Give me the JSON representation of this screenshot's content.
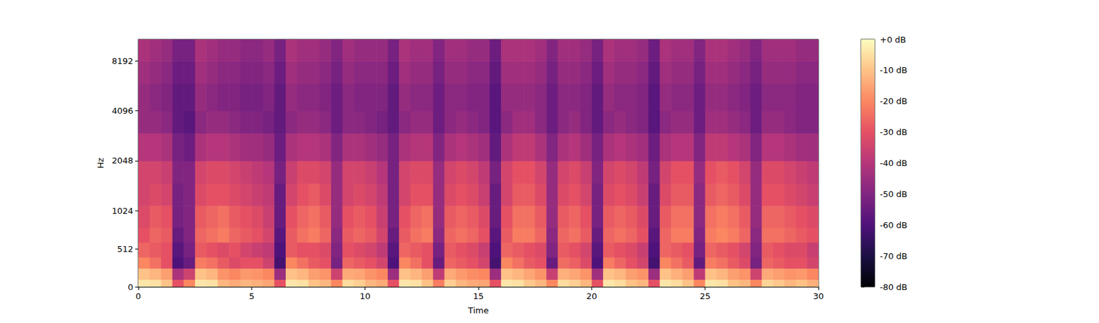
{
  "chart_data": {
    "type": "heatmap",
    "xlabel": "Time",
    "ylabel": "Hz",
    "xlim": [
      0,
      30
    ],
    "xticks": [
      0,
      5,
      10,
      15,
      20,
      25,
      30
    ],
    "ylim": [
      0,
      11025
    ],
    "yticks": [
      0,
      512,
      1024,
      2048,
      4096,
      8192
    ],
    "grid": false,
    "x_edges": [
      0,
      0.5,
      1,
      1.5,
      2,
      2.5,
      3,
      3.5,
      4,
      4.5,
      5,
      5.5,
      6,
      6.5,
      7,
      7.5,
      8,
      8.5,
      9,
      9.5,
      10,
      10.5,
      11,
      11.5,
      12,
      12.5,
      13,
      13.5,
      14,
      14.5,
      15,
      15.5,
      16,
      16.5,
      17,
      17.5,
      18,
      18.5,
      19,
      19.5,
      20,
      20.5,
      21,
      21.5,
      22,
      22.5,
      23,
      23.5,
      24,
      24.5,
      25,
      25.5,
      26,
      26.5,
      27,
      27.5,
      28,
      28.5,
      29,
      29.5,
      30
    ],
    "y_edges": [
      0,
      100,
      250,
      400,
      600,
      800,
      1100,
      1500,
      2048,
      3000,
      4096,
      6000,
      8192,
      11025
    ],
    "cells": [
      [
        -4,
        -5,
        -10,
        -30,
        -20,
        -4,
        -5,
        -12,
        -14,
        -12,
        -13,
        -15,
        -30,
        -4,
        -5,
        -10,
        -12,
        -20,
        -6,
        -8,
        -12,
        -14,
        -30,
        -4,
        -5,
        -10,
        -22,
        -8,
        -12,
        -14,
        -15,
        -30,
        -4,
        -5,
        -9,
        -12,
        -20,
        -6,
        -8,
        -12,
        -30,
        -4,
        -6,
        -10,
        -12,
        -30,
        -4,
        -6,
        -10,
        -20,
        -4,
        -5,
        -10,
        -12,
        -20,
        -7,
        -9,
        -12,
        -10,
        -13
      ],
      [
        -10,
        -12,
        -16,
        -42,
        -35,
        -10,
        -12,
        -18,
        -20,
        -17,
        -18,
        -20,
        -45,
        -10,
        -12,
        -16,
        -18,
        -35,
        -14,
        -15,
        -18,
        -20,
        -45,
        -10,
        -12,
        -16,
        -38,
        -14,
        -17,
        -19,
        -20,
        -45,
        -10,
        -12,
        -15,
        -18,
        -36,
        -13,
        -15,
        -18,
        -44,
        -10,
        -12,
        -16,
        -18,
        -45,
        -10,
        -13,
        -16,
        -38,
        -10,
        -12,
        -16,
        -18,
        -35,
        -14,
        -16,
        -18,
        -17,
        -20
      ],
      [
        -20,
        -24,
        -30,
        -60,
        -55,
        -22,
        -24,
        -28,
        -32,
        -30,
        -30,
        -35,
        -62,
        -20,
        -24,
        -28,
        -30,
        -52,
        -26,
        -28,
        -30,
        -34,
        -60,
        -20,
        -24,
        -30,
        -55,
        -26,
        -28,
        -30,
        -34,
        -62,
        -20,
        -24,
        -28,
        -30,
        -55,
        -25,
        -27,
        -32,
        -60,
        -22,
        -26,
        -30,
        -34,
        -62,
        -20,
        -24,
        -28,
        -56,
        -22,
        -24,
        -28,
        -32,
        -52,
        -26,
        -28,
        -30,
        -30,
        -34
      ],
      [
        -26,
        -28,
        -30,
        -58,
        -52,
        -28,
        -30,
        -32,
        -30,
        -34,
        -36,
        -38,
        -60,
        -28,
        -30,
        -30,
        -32,
        -50,
        -30,
        -32,
        -34,
        -38,
        -58,
        -26,
        -28,
        -30,
        -52,
        -28,
        -30,
        -32,
        -36,
        -60,
        -26,
        -28,
        -30,
        -32,
        -50,
        -28,
        -30,
        -34,
        -58,
        -28,
        -30,
        -32,
        -36,
        -60,
        -26,
        -28,
        -30,
        -52,
        -26,
        -28,
        -30,
        -34,
        -50,
        -28,
        -30,
        -32,
        -32,
        -36
      ],
      [
        -30,
        -26,
        -28,
        -55,
        -50,
        -26,
        -24,
        -22,
        -26,
        -28,
        -30,
        -34,
        -58,
        -28,
        -24,
        -22,
        -26,
        -48,
        -28,
        -26,
        -28,
        -34,
        -55,
        -28,
        -24,
        -22,
        -48,
        -26,
        -24,
        -26,
        -30,
        -58,
        -28,
        -22,
        -22,
        -26,
        -48,
        -26,
        -24,
        -28,
        -55,
        -26,
        -24,
        -26,
        -30,
        -58,
        -26,
        -22,
        -22,
        -50,
        -22,
        -20,
        -22,
        -26,
        -48,
        -24,
        -24,
        -26,
        -28,
        -30
      ],
      [
        -32,
        -28,
        -30,
        -52,
        -50,
        -28,
        -26,
        -24,
        -28,
        -30,
        -32,
        -36,
        -55,
        -30,
        -26,
        -24,
        -28,
        -46,
        -30,
        -28,
        -30,
        -36,
        -52,
        -30,
        -26,
        -24,
        -46,
        -28,
        -26,
        -28,
        -32,
        -55,
        -30,
        -24,
        -24,
        -28,
        -46,
        -28,
        -26,
        -30,
        -52,
        -28,
        -26,
        -28,
        -32,
        -55,
        -28,
        -24,
        -24,
        -48,
        -24,
        -22,
        -24,
        -28,
        -46,
        -26,
        -26,
        -28,
        -30,
        -32
      ],
      [
        -34,
        -32,
        -34,
        -52,
        -50,
        -32,
        -30,
        -30,
        -32,
        -34,
        -36,
        -38,
        -55,
        -34,
        -30,
        -28,
        -32,
        -46,
        -34,
        -32,
        -34,
        -38,
        -52,
        -34,
        -30,
        -30,
        -46,
        -32,
        -30,
        -32,
        -36,
        -55,
        -34,
        -28,
        -28,
        -32,
        -46,
        -32,
        -30,
        -34,
        -52,
        -32,
        -30,
        -32,
        -36,
        -55,
        -32,
        -28,
        -28,
        -48,
        -28,
        -26,
        -28,
        -32,
        -46,
        -30,
        -30,
        -32,
        -34,
        -36
      ],
      [
        -34,
        -34,
        -36,
        -50,
        -50,
        -34,
        -32,
        -32,
        -34,
        -36,
        -38,
        -40,
        -52,
        -36,
        -32,
        -32,
        -34,
        -46,
        -34,
        -34,
        -36,
        -40,
        -52,
        -34,
        -32,
        -32,
        -46,
        -34,
        -32,
        -34,
        -38,
        -52,
        -34,
        -30,
        -30,
        -34,
        -46,
        -34,
        -32,
        -36,
        -50,
        -34,
        -32,
        -34,
        -38,
        -52,
        -34,
        -30,
        -30,
        -46,
        -30,
        -28,
        -30,
        -34,
        -46,
        -32,
        -32,
        -34,
        -36,
        -38
      ],
      [
        -40,
        -40,
        -42,
        -52,
        -54,
        -42,
        -40,
        -40,
        -42,
        -44,
        -44,
        -46,
        -54,
        -42,
        -40,
        -40,
        -42,
        -50,
        -42,
        -42,
        -44,
        -46,
        -52,
        -42,
        -40,
        -40,
        -50,
        -42,
        -40,
        -42,
        -44,
        -56,
        -42,
        -38,
        -38,
        -42,
        -50,
        -42,
        -40,
        -44,
        -52,
        -42,
        -40,
        -42,
        -44,
        -54,
        -42,
        -40,
        -40,
        -50,
        -38,
        -38,
        -40,
        -42,
        -50,
        -40,
        -40,
        -42,
        -44,
        -44
      ],
      [
        -46,
        -46,
        -48,
        -56,
        -58,
        -48,
        -46,
        -46,
        -48,
        -50,
        -50,
        -52,
        -56,
        -48,
        -46,
        -46,
        -48,
        -54,
        -48,
        -48,
        -50,
        -52,
        -56,
        -48,
        -46,
        -46,
        -54,
        -48,
        -46,
        -48,
        -50,
        -58,
        -48,
        -44,
        -44,
        -48,
        -54,
        -48,
        -46,
        -50,
        -56,
        -48,
        -46,
        -48,
        -50,
        -58,
        -48,
        -46,
        -46,
        -54,
        -44,
        -44,
        -46,
        -48,
        -54,
        -46,
        -46,
        -48,
        -50,
        -50
      ],
      [
        -46,
        -48,
        -50,
        -56,
        -56,
        -46,
        -48,
        -50,
        -50,
        -52,
        -52,
        -50,
        -56,
        -46,
        -48,
        -48,
        -50,
        -54,
        -48,
        -50,
        -50,
        -50,
        -56,
        -46,
        -48,
        -48,
        -54,
        -48,
        -48,
        -50,
        -50,
        -58,
        -46,
        -46,
        -46,
        -48,
        -54,
        -48,
        -48,
        -50,
        -56,
        -46,
        -48,
        -48,
        -50,
        -58,
        -46,
        -48,
        -48,
        -54,
        -46,
        -46,
        -48,
        -50,
        -54,
        -48,
        -48,
        -48,
        -50,
        -50
      ],
      [
        -44,
        -46,
        -48,
        -54,
        -54,
        -44,
        -46,
        -48,
        -48,
        -50,
        -50,
        -48,
        -54,
        -44,
        -46,
        -46,
        -48,
        -52,
        -46,
        -48,
        -48,
        -48,
        -54,
        -44,
        -46,
        -46,
        -52,
        -46,
        -46,
        -48,
        -48,
        -56,
        -44,
        -44,
        -44,
        -46,
        -52,
        -46,
        -46,
        -48,
        -54,
        -44,
        -46,
        -46,
        -48,
        -56,
        -44,
        -46,
        -46,
        -52,
        -44,
        -44,
        -46,
        -48,
        -52,
        -46,
        -46,
        -46,
        -48,
        -48
      ],
      [
        -42,
        -44,
        -46,
        -52,
        -52,
        -42,
        -44,
        -46,
        -46,
        -48,
        -48,
        -46,
        -52,
        -42,
        -44,
        -44,
        -46,
        -50,
        -44,
        -46,
        -46,
        -46,
        -52,
        -42,
        -44,
        -44,
        -50,
        -44,
        -44,
        -46,
        -46,
        -54,
        -42,
        -42,
        -42,
        -44,
        -50,
        -44,
        -44,
        -46,
        -52,
        -42,
        -44,
        -44,
        -46,
        -54,
        -42,
        -44,
        -44,
        -50,
        -42,
        -42,
        -44,
        -46,
        -50,
        -44,
        -44,
        -44,
        -46,
        -46
      ]
    ],
    "colorbar_range": [
      -80,
      0
    ],
    "colorbar_ticks": [
      {
        "value": 0,
        "label": "+0 dB"
      },
      {
        "value": -10,
        "label": "-10 dB"
      },
      {
        "value": -20,
        "label": "-20 dB"
      },
      {
        "value": -30,
        "label": "-30 dB"
      },
      {
        "value": -40,
        "label": "-40 dB"
      },
      {
        "value": -50,
        "label": "-50 dB"
      },
      {
        "value": -60,
        "label": "-60 dB"
      },
      {
        "value": -70,
        "label": "-70 dB"
      },
      {
        "value": -80,
        "label": "-80 dB"
      }
    ]
  }
}
